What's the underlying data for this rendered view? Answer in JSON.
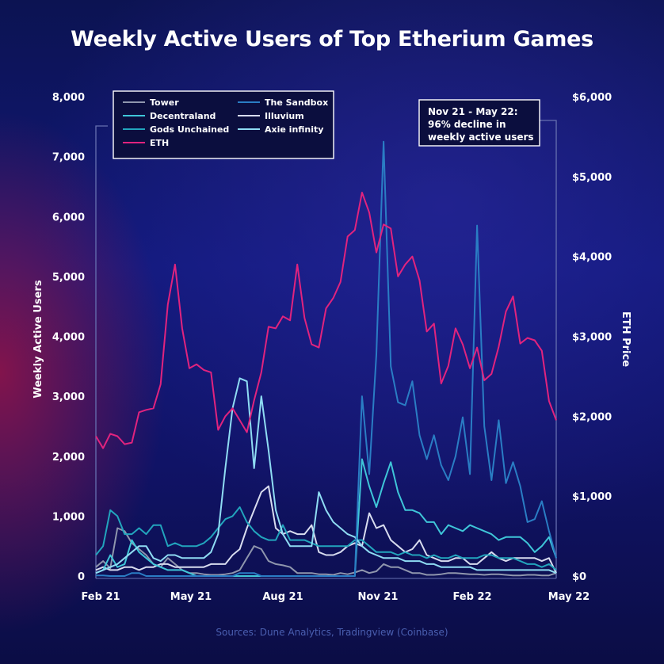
{
  "title": "Weekly Active Users of Top Etherium Games",
  "source": "Sources: Dune Analytics, Tradingview (Coinbase)",
  "annotation": [
    "Nov 21 - May 22:",
    "96% decline in",
    "weekly active users"
  ],
  "chart_data": {
    "type": "line",
    "title": "Weekly Active Users of Top Etherium Games",
    "ylabel": "Weekly Active Users",
    "y2label": "ETH Price",
    "ylim": [
      0,
      8000
    ],
    "y2lim": [
      0,
      6000
    ],
    "y_ticks": [
      "0",
      "1,000",
      "2,000",
      "3,000",
      "4,000",
      "5,000",
      "6,000",
      "7,000",
      "8,000"
    ],
    "y2_ticks": [
      "$0",
      "$1,000",
      "$2,000",
      "$3,000",
      "$4,000",
      "$5,000",
      "$6,000"
    ],
    "x_ticks": [
      "Feb 21",
      "May 21",
      "Aug 21",
      "Nov 21",
      "Feb 22",
      "May 22"
    ],
    "x_range": [
      0,
      64
    ],
    "legend_position": "top-left",
    "legend_columns": 2,
    "grid": false,
    "series": [
      {
        "name": "Tower",
        "axis": "left",
        "color": "#8f96ad",
        "values": [
          150,
          250,
          130,
          800,
          750,
          550,
          450,
          350,
          200,
          150,
          300,
          200,
          100,
          50,
          50,
          30,
          20,
          20,
          30,
          50,
          100,
          300,
          500,
          450,
          250,
          200,
          180,
          150,
          50,
          50,
          50,
          30,
          30,
          20,
          50,
          30,
          60,
          100,
          50,
          80,
          200,
          150,
          150,
          100,
          50,
          50,
          20,
          20,
          30,
          50,
          50,
          40,
          30,
          30,
          20,
          30,
          30,
          20,
          10,
          10,
          20,
          20,
          10,
          10,
          50
        ]
      },
      {
        "name": "The Sandbox",
        "axis": "left",
        "color": "#2a7dc4",
        "values": [
          10,
          10,
          0,
          0,
          0,
          50,
          50,
          0,
          0,
          0,
          0,
          0,
          0,
          0,
          0,
          0,
          0,
          0,
          0,
          0,
          50,
          50,
          50,
          0,
          0,
          0,
          0,
          0,
          0,
          0,
          0,
          0,
          0,
          0,
          0,
          0,
          0,
          3000,
          1700,
          3700,
          7250,
          3500,
          2900,
          2850,
          3250,
          2350,
          1950,
          2350,
          1850,
          1600,
          2000,
          2650,
          1700,
          5850,
          2500,
          1600,
          2600,
          1550,
          1900,
          1500,
          900,
          950,
          1250,
          750,
          300
        ]
      },
      {
        "name": "Decentraland",
        "axis": "left",
        "color": "#3fc6d8",
        "values": [
          50,
          100,
          350,
          150,
          200,
          600,
          400,
          300,
          200,
          150,
          100,
          100,
          100,
          50,
          0,
          0,
          0,
          0,
          0,
          0,
          0,
          0,
          0,
          0,
          0,
          0,
          0,
          0,
          0,
          0,
          0,
          0,
          0,
          0,
          0,
          0,
          0,
          1950,
          1500,
          1150,
          1550,
          1900,
          1400,
          1100,
          1100,
          1050,
          900,
          900,
          700,
          850,
          800,
          750,
          850,
          800,
          750,
          700,
          600,
          650,
          650,
          650,
          550,
          400,
          500,
          650,
          300
        ]
      },
      {
        "name": "Illuvium",
        "axis": "left",
        "color": "#d8dcef",
        "values": [
          100,
          150,
          100,
          100,
          150,
          150,
          100,
          150,
          150,
          200,
          200,
          150,
          150,
          150,
          150,
          150,
          200,
          200,
          200,
          350,
          450,
          800,
          1100,
          1400,
          1500,
          800,
          700,
          750,
          700,
          700,
          850,
          400,
          350,
          350,
          400,
          500,
          550,
          500,
          1050,
          800,
          850,
          600,
          500,
          400,
          450,
          600,
          350,
          300,
          250,
          250,
          300,
          300,
          200,
          200,
          300,
          400,
          300,
          250,
          300,
          300,
          300,
          300,
          250,
          300,
          50
        ]
      },
      {
        "name": "Gods Unchained",
        "axis": "left",
        "color": "#22a5bd",
        "values": [
          350,
          500,
          1100,
          1000,
          700,
          700,
          800,
          700,
          850,
          850,
          500,
          550,
          500,
          500,
          500,
          550,
          650,
          800,
          950,
          1000,
          1150,
          900,
          750,
          650,
          600,
          600,
          850,
          600,
          600,
          600,
          550,
          500,
          500,
          500,
          500,
          500,
          600,
          600,
          500,
          400,
          400,
          400,
          350,
          400,
          350,
          350,
          300,
          350,
          300,
          300,
          350,
          300,
          300,
          300,
          350,
          350,
          300,
          300,
          300,
          250,
          200,
          200,
          150,
          200,
          100
        ]
      },
      {
        "name": "Axie infinity",
        "axis": "left",
        "color": "#8fdcf3",
        "values": [
          50,
          100,
          150,
          200,
          300,
          400,
          500,
          500,
          300,
          250,
          350,
          350,
          300,
          300,
          300,
          300,
          400,
          700,
          1800,
          2800,
          3300,
          3250,
          1800,
          3000,
          2100,
          1100,
          700,
          500,
          500,
          500,
          500,
          1400,
          1100,
          900,
          800,
          700,
          650,
          500,
          400,
          350,
          300,
          300,
          300,
          250,
          250,
          250,
          200,
          200,
          150,
          150,
          150,
          150,
          150,
          100,
          100,
          100,
          100,
          100,
          100,
          100,
          100,
          100,
          100,
          100,
          50
        ]
      },
      {
        "name": "ETH",
        "axis": "right",
        "color": "#e1237e",
        "values": [
          1750,
          1600,
          1780,
          1750,
          1650,
          1670,
          2050,
          2080,
          2100,
          2400,
          3400,
          3900,
          3100,
          2600,
          2650,
          2580,
          2550,
          1830,
          2000,
          2100,
          1950,
          1800,
          2200,
          2550,
          3120,
          3100,
          3250,
          3200,
          3900,
          3230,
          2900,
          2860,
          3350,
          3480,
          3680,
          4250,
          4330,
          4800,
          4550,
          4050,
          4400,
          4350,
          3750,
          3900,
          4000,
          3700,
          3060,
          3160,
          2410,
          2630,
          3100,
          2900,
          2600,
          2860,
          2450,
          2530,
          2870,
          3310,
          3500,
          2910,
          2980,
          2950,
          2820,
          2190,
          1950
        ]
      }
    ]
  }
}
